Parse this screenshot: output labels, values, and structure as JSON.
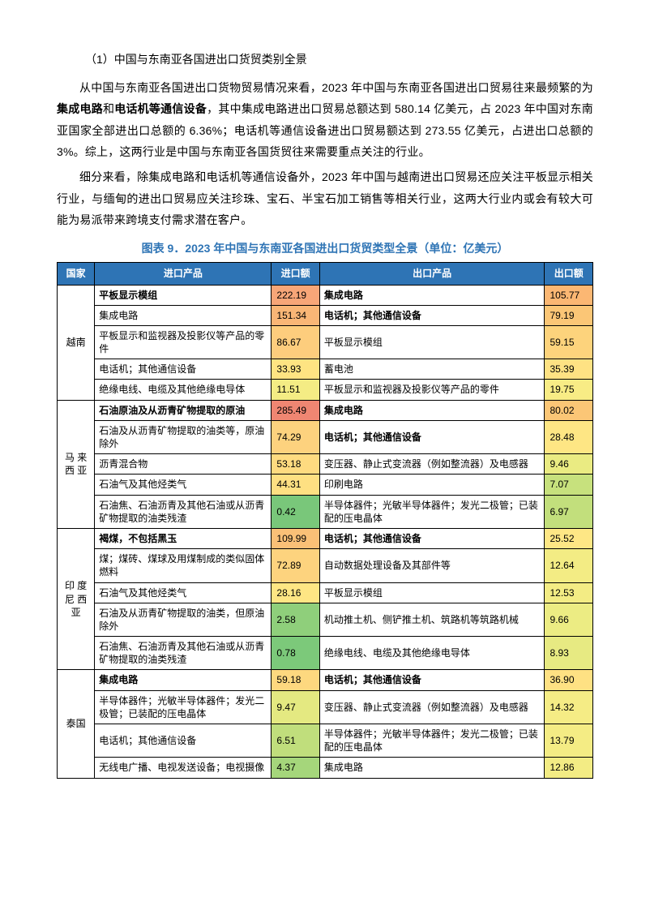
{
  "heading1": "（1）中国与东南亚各国进出口货贸类别全景",
  "para1_parts": [
    "从中国与东南亚各国进出口货物贸易情况来看，2023 年中国与东南亚各国进出口贸易往来最频繁的为",
    "集成电路",
    "和",
    "电话机等通信设备",
    "，其中集成电路进出口贸易总额达到 580.14 亿美元，占 2023 年中国对东南亚国家全部进出口总额的 6.36%；电话机等通信设备进出口贸易额达到 273.55 亿美元，占进出口总额的 3%。综上，这两行业是中国与东南亚各国货贸往来需要重点关注的行业。"
  ],
  "para2": "细分来看，除集成电路和电话机等通信设备外，2023 年中国与越南进出口贸易还应关注平板显示相关行业，与缅甸的进出口贸易应关注珍珠、宝石、半宝石加工销售等相关行业，这两大行业内或会有较大可能为易派带来跨境支付需求潜在客户。",
  "table_title": "图表 9．2023 年中国与东南亚各国进出口货贸类型全景（单位：亿美元）",
  "columns": [
    "国家",
    "进口产品",
    "进口额",
    "出口产品",
    "出口额"
  ],
  "heatmap_palette_note": "green->yellow->orange->red, mirroring source cell shading",
  "groups": [
    {
      "country": "越南",
      "rows": [
        {
          "imp_prod": "平板显示模组",
          "imp_bold": true,
          "imp_val": "222.19",
          "imp_color": "#f7a678",
          "exp_prod": "集成电路",
          "exp_bold": true,
          "exp_val": "105.77",
          "exp_color": "#fbb773"
        },
        {
          "imp_prod": "集成电路",
          "imp_val": "151.34",
          "imp_color": "#f9b676",
          "exp_prod": "电话机；其他通信设备",
          "exp_bold": true,
          "exp_val": "79.19",
          "exp_color": "#fbc676"
        },
        {
          "imp_prod": "平板显示和监视器及投影仪等产品的零件",
          "imp_val": "86.67",
          "imp_color": "#fdcd7d",
          "exp_prod": "平板显示模组",
          "exp_val": "59.15",
          "exp_color": "#fdd37c"
        },
        {
          "imp_prod": "电话机；其他通信设备",
          "imp_val": "33.93",
          "imp_color": "#fee482",
          "exp_prod": "蓄电池",
          "exp_val": "35.39",
          "exp_color": "#fee283"
        },
        {
          "imp_prod": "绝缘电线、电缆及其他绝缘电导体",
          "imp_val": "11.51",
          "imp_color": "#f4ec84",
          "exp_prod": "平板显示和监视器及投影仪等产品的零件",
          "exp_val": "19.75",
          "exp_color": "#f8ec85"
        }
      ]
    },
    {
      "country": "马 来西 亚",
      "rows": [
        {
          "imp_prod": "石油原油及从沥青矿物提取的原油",
          "imp_bold": true,
          "imp_val": "285.49",
          "imp_color": "#ef8672",
          "exp_prod": "集成电路",
          "exp_bold": true,
          "exp_val": "80.02",
          "exp_color": "#fbc676"
        },
        {
          "imp_prod": "石油及从沥青矿物提取的油类等，原油除外",
          "imp_val": "74.29",
          "imp_color": "#fdd27e",
          "exp_prod": "电话机；其他通信设备",
          "exp_bold": true,
          "exp_val": "28.48",
          "exp_color": "#fee684"
        },
        {
          "imp_prod": "沥青混合物",
          "imp_val": "53.18",
          "imp_color": "#fedb80",
          "exp_prod": "变压器、静止式变流器（例如整流器）及电感器",
          "exp_val": "9.46",
          "exp_color": "#eaeb82"
        },
        {
          "imp_prod": "石油气及其他烃类气",
          "imp_val": "44.31",
          "imp_color": "#fee082",
          "exp_prod": "印刷电路",
          "exp_val": "7.07",
          "exp_color": "#c7e17d"
        },
        {
          "imp_prod": "石油焦、石油沥青及其他石油或从沥青矿物提取的油类残渣",
          "imp_val": "0.42",
          "imp_color": "#79c77a",
          "exp_prod": "半导体器件；光敏半导体器件；发光二极管；已装配的压电晶体",
          "exp_val": "6.97",
          "exp_color": "#c2df7c"
        }
      ]
    },
    {
      "country": "印 度尼 西亚",
      "rows": [
        {
          "imp_prod": "褐煤，不包括黑玉",
          "imp_bold": true,
          "imp_val": "109.99",
          "imp_color": "#fac077",
          "exp_prod": "电话机；其他通信设备",
          "exp_bold": true,
          "exp_val": "25.52",
          "exp_color": "#fee785"
        },
        {
          "imp_prod": "煤；煤砖、煤球及用煤制成的类似固体燃料",
          "imp_val": "72.89",
          "imp_color": "#fdd37e",
          "exp_prod": "自动数据处理设备及其部件等",
          "exp_val": "12.64",
          "exp_color": "#f3ec84"
        },
        {
          "imp_prod": "石油气及其他烃类气",
          "imp_val": "28.16",
          "imp_color": "#fee684",
          "exp_prod": "平板显示模组",
          "exp_val": "12.53",
          "exp_color": "#f3ec84"
        },
        {
          "imp_prod": "石油及从沥青矿物提取的油类，但原油除外",
          "imp_val": "2.58",
          "imp_color": "#8fcf7b",
          "exp_prod": "机动推土机、侧铲推土机、筑路机等筑路机械",
          "exp_val": "9.66",
          "exp_color": "#ecec83"
        },
        {
          "imp_prod": "石油焦、石油沥青及其他石油或从沥青矿物提取的油类残渣",
          "imp_val": "0.78",
          "imp_color": "#7cc97a",
          "exp_prod": "绝缘电线、电缆及其他绝缘电导体",
          "exp_val": "8.93",
          "exp_color": "#e7ea82"
        }
      ]
    },
    {
      "country": "泰国",
      "rows": [
        {
          "imp_prod": "集成电路",
          "imp_bold": true,
          "imp_val": "59.18",
          "imp_color": "#fdd87f",
          "exp_prod": "电话机；其他通信设备",
          "exp_bold": true,
          "exp_val": "36.90",
          "exp_color": "#fee183"
        },
        {
          "imp_prod": "半导体器件；光敏半导体器件；发光二极管；已装配的压电晶体",
          "imp_val": "9.47",
          "imp_color": "#e4e981",
          "exp_prod": "变压器、静止式变流器（例如整流器）及电感器",
          "exp_val": "14.32",
          "exp_color": "#f5ec85"
        },
        {
          "imp_prod": "电话机；其他通信设备",
          "imp_val": "6.51",
          "imp_color": "#c0de7c",
          "exp_prod": "半导体器件；光敏半导体器件；发光二极管；已装配的压电晶体",
          "exp_val": "13.79",
          "exp_color": "#f4ec84"
        },
        {
          "imp_prod": "无线电广播、电视发送设备；电视摄像",
          "imp_val": "4.37",
          "imp_color": "#a5d67b",
          "exp_prod": "集成电路",
          "exp_val": "12.86",
          "exp_color": "#f3ec84"
        }
      ]
    }
  ]
}
